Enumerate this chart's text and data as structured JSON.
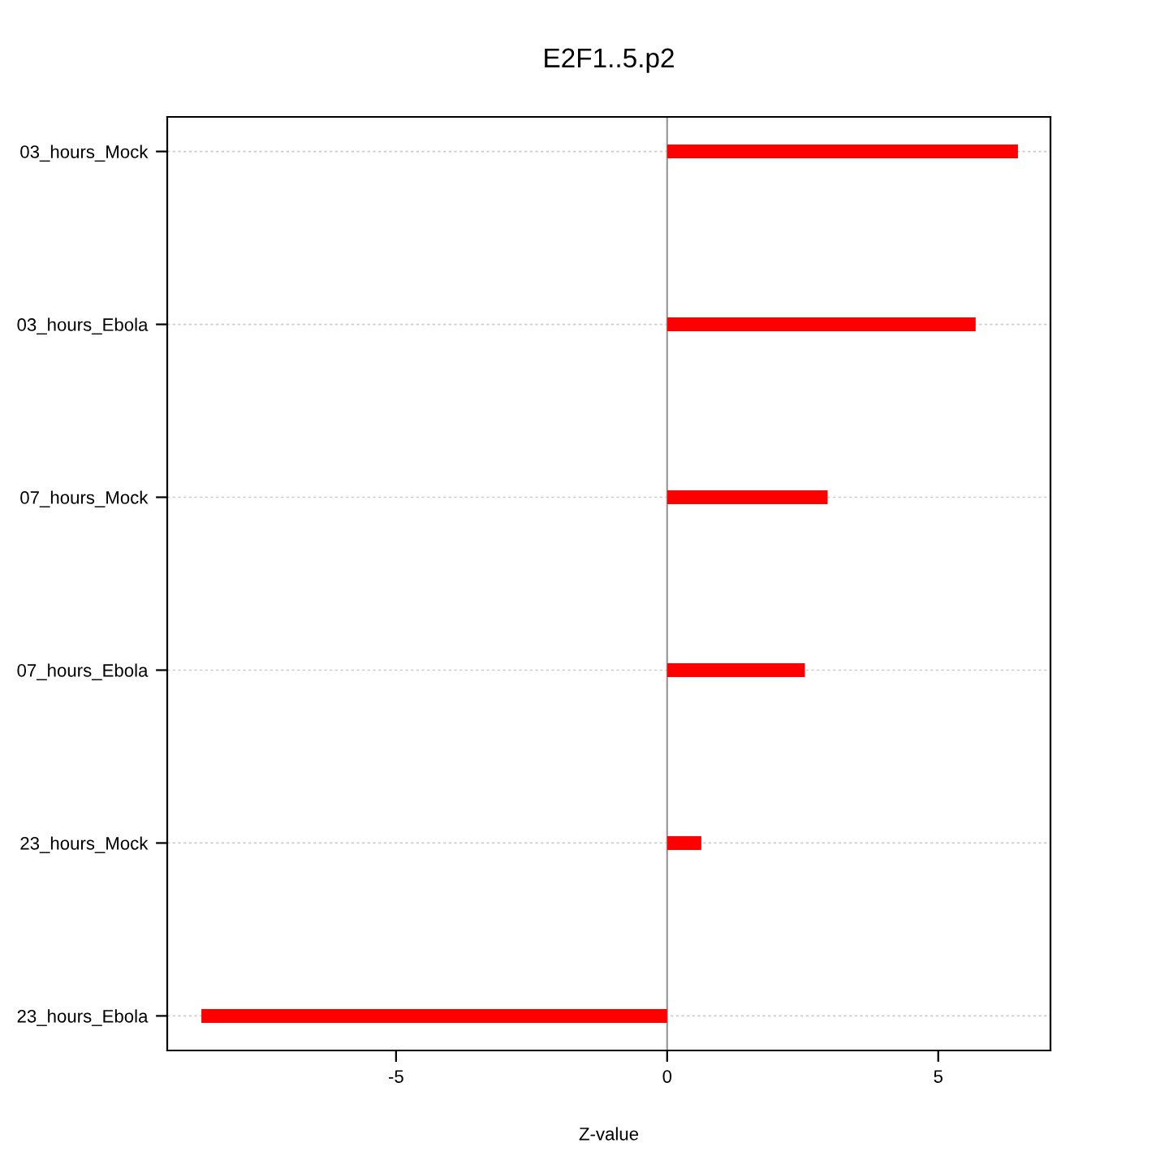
{
  "chart_data": {
    "type": "bar",
    "orientation": "horizontal",
    "title": "E2F1..5.p2",
    "xlabel": "Z-value",
    "categories": [
      "03_hours_Mock",
      "03_hours_Ebola",
      "07_hours_Mock",
      "07_hours_Ebola",
      "23_hours_Mock",
      "23_hours_Ebola"
    ],
    "values": [
      6.47,
      5.69,
      2.96,
      2.54,
      0.63,
      -8.59
    ],
    "color": "#ff0000",
    "xlim": [
      -9.22,
      7.07
    ],
    "xticks": [
      -5,
      0,
      5
    ],
    "grid": "y",
    "ref_lines": [
      {
        "axis": "x",
        "value": 0,
        "color": "#999999"
      }
    ]
  }
}
